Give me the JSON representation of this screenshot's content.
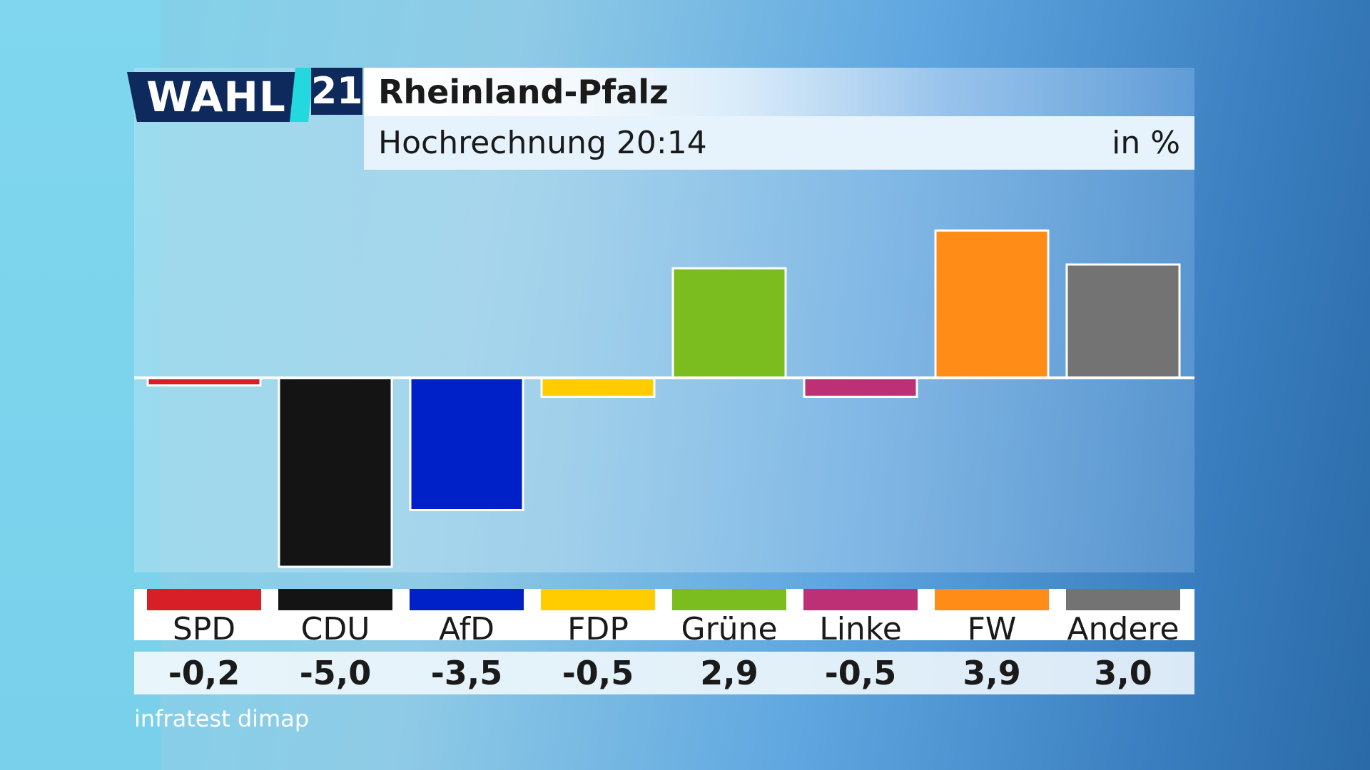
{
  "logo": {
    "word": "WAHL",
    "year": "21"
  },
  "header": {
    "title": "Rheinland-Pfalz",
    "subtitle": "Hochrechnung 20:14",
    "unit": "in %"
  },
  "source": "infratest dimap",
  "colors": {
    "background": "#5fa6e0",
    "logo": "#0e2a5c",
    "accent": "#24d8e0"
  },
  "chart_data": {
    "type": "bar",
    "title": "Rheinland-Pfalz",
    "subtitle": "Hochrechnung 20:14",
    "ylabel": "in %",
    "categories": [
      "SPD",
      "CDU",
      "AfD",
      "FDP",
      "Grüne",
      "Linke",
      "FW",
      "Andere"
    ],
    "values": [
      -0.2,
      -5.0,
      -3.5,
      -0.5,
      2.9,
      -0.5,
      3.9,
      3.0
    ],
    "value_labels": [
      "-0,2",
      "-5,0",
      "-3,5",
      "-0,5",
      "2,9",
      "-0,5",
      "3,9",
      "3,0"
    ],
    "colors": [
      "#d61f26",
      "#141414",
      "#0020c8",
      "#ffcc00",
      "#7bbd1e",
      "#bd3075",
      "#ff8c17",
      "#737373"
    ],
    "ylim": [
      -5.2,
      4.7
    ],
    "grid": false,
    "legend": "bottom"
  }
}
